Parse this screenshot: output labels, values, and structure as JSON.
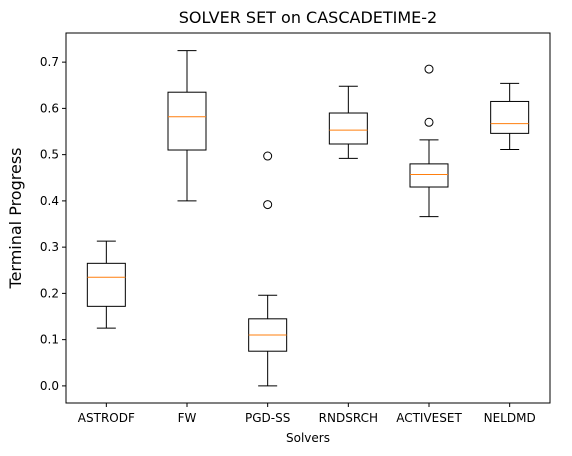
{
  "chart_data": {
    "type": "box",
    "title": "SOLVER SET on CASCADETIME-2",
    "xlabel": "Solvers",
    "ylabel": "Terminal Progress",
    "ylim": [
      -0.037,
      0.763
    ],
    "yticks": [
      0.0,
      0.1,
      0.2,
      0.3,
      0.4,
      0.5,
      0.6,
      0.7
    ],
    "ytick_labels": [
      "0.0",
      "0.1",
      "0.2",
      "0.3",
      "0.4",
      "0.5",
      "0.6",
      "0.7"
    ],
    "grid": false,
    "colors": {
      "box": "#000000",
      "median": "#ff7f0e",
      "outlier": "#000000"
    },
    "categories": [
      "ASTRODF",
      "FW",
      "PGD-SS",
      "RNDSRCH",
      "ACTIVESET",
      "NELDMD"
    ],
    "boxes": [
      {
        "name": "ASTRODF",
        "whisker_low": 0.125,
        "q1": 0.172,
        "median": 0.235,
        "q3": 0.265,
        "whisker_high": 0.313,
        "outliers": []
      },
      {
        "name": "FW",
        "whisker_low": 0.4,
        "q1": 0.51,
        "median": 0.582,
        "q3": 0.635,
        "whisker_high": 0.725,
        "outliers": []
      },
      {
        "name": "PGD-SS",
        "whisker_low": 0.0,
        "q1": 0.075,
        "median": 0.11,
        "q3": 0.145,
        "whisker_high": 0.196,
        "outliers": [
          0.392,
          0.497
        ]
      },
      {
        "name": "RNDSRCH",
        "whisker_low": 0.492,
        "q1": 0.523,
        "median": 0.553,
        "q3": 0.59,
        "whisker_high": 0.648,
        "outliers": []
      },
      {
        "name": "ACTIVESET",
        "whisker_low": 0.366,
        "q1": 0.43,
        "median": 0.457,
        "q3": 0.48,
        "whisker_high": 0.532,
        "outliers": [
          0.57,
          0.685
        ]
      },
      {
        "name": "NELDMD",
        "whisker_low": 0.511,
        "q1": 0.546,
        "median": 0.567,
        "q3": 0.615,
        "whisker_high": 0.654,
        "outliers": []
      }
    ]
  }
}
